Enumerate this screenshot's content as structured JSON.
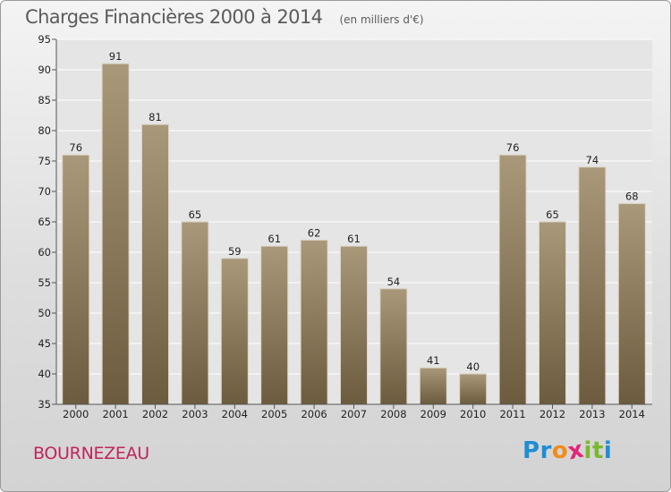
{
  "header": {
    "title": "Charges Financières 2000 à 2014",
    "subtitle": "(en milliers d'€)"
  },
  "footer": {
    "commune": "BOURNEZEAU",
    "logo_letters": [
      "P",
      "r",
      "o",
      "x",
      "i",
      "t",
      "i"
    ],
    "logo_colors": [
      "#1f8dd6",
      "#1f8dd6",
      "#f08c1a",
      "#e2247a",
      "#7cb82f",
      "#7cb82f",
      "#1f8dd6"
    ]
  },
  "colors": {
    "bar_light": "#a9987a",
    "bar_dark": "#6c5b3e",
    "bar_edge": "#dcd4c4"
  },
  "chart_data": {
    "type": "bar",
    "title": "Charges Financières 2000 à 2014",
    "subtitle": "(en milliers d'€)",
    "categories": [
      "2000",
      "2001",
      "2002",
      "2003",
      "2004",
      "2005",
      "2006",
      "2007",
      "2008",
      "2009",
      "2010",
      "2011",
      "2012",
      "2013",
      "2014"
    ],
    "values": [
      76,
      91,
      81,
      65,
      59,
      61,
      62,
      61,
      54,
      41,
      40,
      76,
      65,
      74,
      68
    ],
    "ylim": [
      35,
      95
    ],
    "yticks": [
      35,
      40,
      45,
      50,
      55,
      60,
      65,
      70,
      75,
      80,
      85,
      90,
      95
    ],
    "grid": true
  }
}
